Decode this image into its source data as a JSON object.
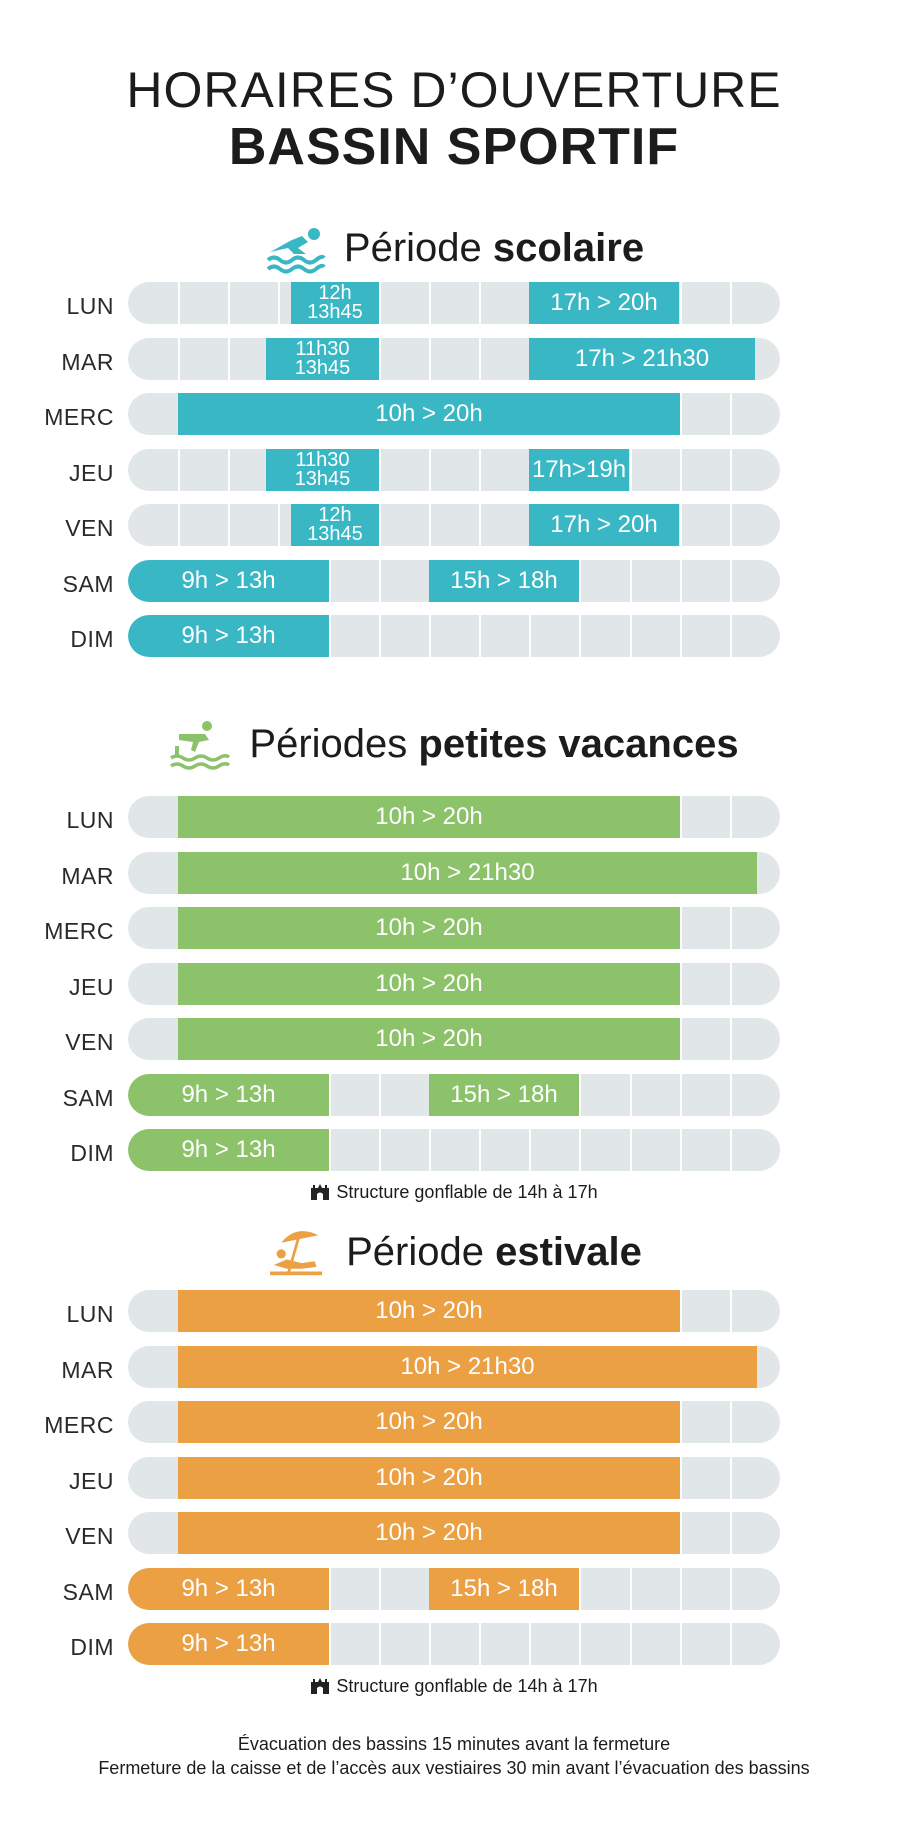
{
  "title": {
    "line1": "HORAIRES D’OUVERTURE",
    "line2": "BASSIN SPORTIF"
  },
  "colors": {
    "scolaire": "#3ab7c5",
    "vacances": "#8cc26a",
    "estivale": "#eca044",
    "track": "#e1e6e8"
  },
  "sections": [
    {
      "id": "scolaire",
      "title_regular": "Période ",
      "title_bold": "scolaire",
      "icon": "swimmer-icon",
      "rows": [
        {
          "day": "LUN",
          "segments": [
            {
              "from": 11.75,
              "to": 13.5,
              "label": "12h",
              "label2": "13h45"
            },
            {
              "from": 16.5,
              "to": 19.5,
              "label": "17h > 20h"
            }
          ]
        },
        {
          "day": "MAR",
          "segments": [
            {
              "from": 11.25,
              "to": 13.5,
              "label": "11h30",
              "label2": "13h45"
            },
            {
              "from": 16.5,
              "to": 21.0,
              "label": "17h > 21h30"
            }
          ]
        },
        {
          "day": "MERC",
          "segments": [
            {
              "from": 9.5,
              "to": 19.5,
              "label": "10h > 20h"
            }
          ]
        },
        {
          "day": "JEU",
          "segments": [
            {
              "from": 11.25,
              "to": 13.5,
              "label": "11h30",
              "label2": "13h45"
            },
            {
              "from": 16.5,
              "to": 18.5,
              "label": "17h>19h"
            }
          ]
        },
        {
          "day": "VEN",
          "segments": [
            {
              "from": 11.75,
              "to": 13.5,
              "label": "12h",
              "label2": "13h45"
            },
            {
              "from": 16.5,
              "to": 19.5,
              "label": "17h > 20h"
            }
          ]
        },
        {
          "day": "SAM",
          "segments": [
            {
              "from": 8.5,
              "to": 12.5,
              "label": "9h > 13h"
            },
            {
              "from": 14.5,
              "to": 17.5,
              "label": "15h > 18h"
            }
          ]
        },
        {
          "day": "DIM",
          "segments": [
            {
              "from": 8.5,
              "to": 12.5,
              "label": "9h > 13h"
            }
          ]
        }
      ]
    },
    {
      "id": "vacances",
      "title_regular": "Périodes ",
      "title_bold": "petites vacances",
      "icon": "diver-icon",
      "note": "Structure gonflable de 14h à 17h",
      "rows": [
        {
          "day": "LUN",
          "segments": [
            {
              "from": 9.5,
              "to": 19.5,
              "label": "10h > 20h"
            }
          ]
        },
        {
          "day": "MAR",
          "segments": [
            {
              "from": 9.5,
              "to": 21.05,
              "label": "10h > 21h30"
            }
          ]
        },
        {
          "day": "MERC",
          "segments": [
            {
              "from": 9.5,
              "to": 19.5,
              "label": "10h > 20h"
            }
          ]
        },
        {
          "day": "JEU",
          "segments": [
            {
              "from": 9.5,
              "to": 19.5,
              "label": "10h > 20h"
            }
          ]
        },
        {
          "day": "VEN",
          "segments": [
            {
              "from": 9.5,
              "to": 19.5,
              "label": "10h > 20h"
            }
          ]
        },
        {
          "day": "SAM",
          "segments": [
            {
              "from": 8.5,
              "to": 12.5,
              "label": "9h > 13h"
            },
            {
              "from": 14.5,
              "to": 17.5,
              "label": "15h > 18h"
            }
          ]
        },
        {
          "day": "DIM",
          "segments": [
            {
              "from": 8.5,
              "to": 12.5,
              "label": "9h > 13h"
            }
          ]
        }
      ]
    },
    {
      "id": "estivale",
      "title_regular": "Période ",
      "title_bold": "estivale",
      "icon": "beach-umbrella-icon",
      "note": "Structure gonflable de 14h à 17h",
      "rows": [
        {
          "day": "LUN",
          "segments": [
            {
              "from": 9.5,
              "to": 19.5,
              "label": "10h > 20h"
            }
          ]
        },
        {
          "day": "MAR",
          "segments": [
            {
              "from": 9.5,
              "to": 21.05,
              "label": "10h > 21h30"
            }
          ]
        },
        {
          "day": "MERC",
          "segments": [
            {
              "from": 9.5,
              "to": 19.5,
              "label": "10h > 20h"
            }
          ]
        },
        {
          "day": "JEU",
          "segments": [
            {
              "from": 9.5,
              "to": 19.5,
              "label": "10h > 20h"
            }
          ]
        },
        {
          "day": "VEN",
          "segments": [
            {
              "from": 9.5,
              "to": 19.5,
              "label": "10h > 20h"
            }
          ]
        },
        {
          "day": "SAM",
          "segments": [
            {
              "from": 8.5,
              "to": 12.5,
              "label": "9h > 13h"
            },
            {
              "from": 14.5,
              "to": 17.5,
              "label": "15h > 18h"
            }
          ]
        },
        {
          "day": "DIM",
          "segments": [
            {
              "from": 8.5,
              "to": 12.5,
              "label": "9h > 13h"
            }
          ]
        }
      ]
    }
  ],
  "footer": {
    "line1": "Évacuation des bassins 15 minutes avant la fermeture",
    "line2": "Fermeture de la caisse et de l’accès aux vestiaires 30 min avant l’évacuation des bassins"
  }
}
